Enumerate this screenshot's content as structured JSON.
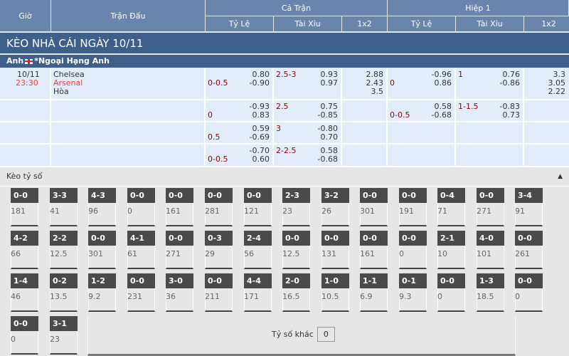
{
  "header": {
    "gio": "Giờ",
    "tran_dau": "Trận Đấu",
    "ca_tran": "Cả Trận",
    "hiep1": "Hiệp 1",
    "ty_le": "Tỷ Lệ",
    "tai_xiu": "Tài Xỉu",
    "x12": "1x2"
  },
  "title": "KÈO NHÀ CÁI NGÀY 10/11",
  "league": {
    "country": "Anh",
    "name": "*Ngoại Hạng Anh"
  },
  "match": {
    "date": "10/11",
    "time": "23:30",
    "home": "Chelsea",
    "away": "Arsenal",
    "draw": "Hòa"
  },
  "rows": [
    {
      "ft_hdp": "0-0.5",
      "ft_hdp_o": [
        "0.80",
        "-0.90"
      ],
      "ft_ou": "2.5-3",
      "ft_ou_o": [
        "0.93",
        "0.97"
      ],
      "ft_1x2": [
        "2.88",
        "2.43",
        "3.5"
      ],
      "h1_hdp": "0",
      "h1_hdp_o": [
        "-0.96",
        "0.86"
      ],
      "h1_ou": "1",
      "h1_ou_o": [
        "0.76",
        "-0.86"
      ],
      "h1_1x2": [
        "3.3",
        "3.05",
        "2.22"
      ]
    },
    {
      "ft_hdp": "0",
      "ft_hdp_o": [
        "-0.93",
        "0.83"
      ],
      "ft_ou": "2.5",
      "ft_ou_o": [
        "0.75",
        "-0.85"
      ],
      "h1_hdp": "0-0.5",
      "h1_hdp_o": [
        "0.58",
        "-0.68"
      ],
      "h1_ou": "1-1.5",
      "h1_ou_o": [
        "-0.83",
        "0.73"
      ]
    },
    {
      "ft_hdp": "0.5",
      "ft_hdp_o": [
        "0.59",
        "-0.69"
      ],
      "ft_ou": "3",
      "ft_ou_o": [
        "-0.80",
        "0.70"
      ]
    },
    {
      "ft_hdp": "0-0.5",
      "ft_hdp_o": [
        "-0.70",
        "0.60"
      ],
      "ft_ou": "2-2.5",
      "ft_ou_o": [
        "0.58",
        "-0.68"
      ]
    }
  ],
  "correct_score": {
    "label": "Kèo tỷ số",
    "collapse_icon": "caret-up-icon",
    "other_label": "Tỷ số khác",
    "other_value": "0",
    "cards": [
      [
        "0-0",
        "181"
      ],
      [
        "3-3",
        "41"
      ],
      [
        "4-3",
        "96"
      ],
      [
        "0-0",
        "0"
      ],
      [
        "0-0",
        "161"
      ],
      [
        "0-0",
        "281"
      ],
      [
        "0-0",
        "121"
      ],
      [
        "2-3",
        "23"
      ],
      [
        "3-2",
        "26"
      ],
      [
        "0-0",
        "301"
      ],
      [
        "0-0",
        "191"
      ],
      [
        "0-4",
        "71"
      ],
      [
        "0-0",
        "271"
      ],
      [
        "3-4",
        "91"
      ],
      [
        "4-2",
        "66"
      ],
      [
        "2-2",
        "12.5"
      ],
      [
        "0-0",
        "301"
      ],
      [
        "4-1",
        "61"
      ],
      [
        "0-0",
        "271"
      ],
      [
        "0-3",
        "29"
      ],
      [
        "2-4",
        "56"
      ],
      [
        "0-0",
        "12.5"
      ],
      [
        "0-0",
        "131"
      ],
      [
        "0-0",
        "161"
      ],
      [
        "0-0",
        "0"
      ],
      [
        "2-1",
        "10"
      ],
      [
        "4-0",
        "101"
      ],
      [
        "0-0",
        "261"
      ],
      [
        "1-4",
        "46"
      ],
      [
        "0-2",
        "13.5"
      ],
      [
        "1-2",
        "9.2"
      ],
      [
        "0-0",
        "231"
      ],
      [
        "3-0",
        "36"
      ],
      [
        "0-0",
        "211"
      ],
      [
        "4-4",
        "171"
      ],
      [
        "2-0",
        "16.5"
      ],
      [
        "1-0",
        "10.5"
      ],
      [
        "1-1",
        "6.9"
      ],
      [
        "0-1",
        "9.3"
      ],
      [
        "0-0",
        "0"
      ],
      [
        "1-3",
        "18.5"
      ],
      [
        "0-0",
        "0"
      ],
      [
        "0-0",
        "0"
      ],
      [
        "3-1",
        "23"
      ]
    ]
  },
  "colors": {
    "header_bg": "#6a84ad",
    "title_bg": "#3e5f8a",
    "row_bg": "#e3ecfa",
    "handicap_red": "#8b0000",
    "time_red": "#e8413c",
    "score_bg": "#4a4a4a"
  }
}
